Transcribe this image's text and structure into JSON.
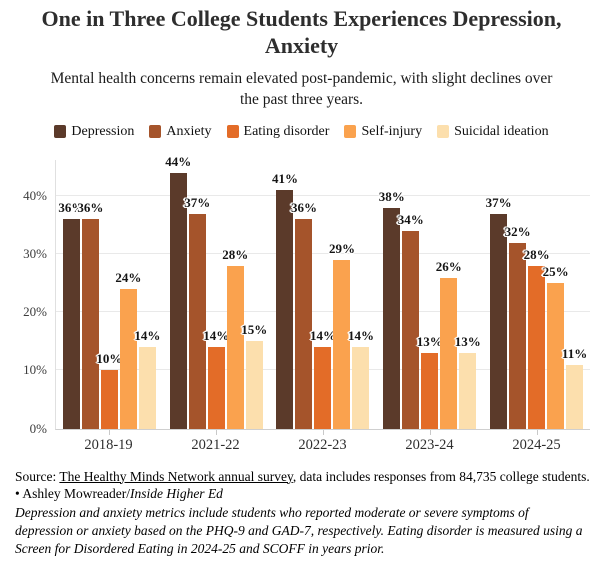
{
  "header": {
    "title": "One in Three College Students Experiences Depression, Anxiety",
    "subtitle": "Mental health concerns remain elevated post-pandemic, with slight declines over the past three years."
  },
  "chart_data": {
    "type": "bar",
    "categories": [
      "2018-19",
      "2021-22",
      "2022-23",
      "2023-24",
      "2024-25"
    ],
    "series": [
      {
        "name": "Depression",
        "color": "#5b3a2a",
        "values": [
          36,
          44,
          41,
          38,
          37
        ]
      },
      {
        "name": "Anxiety",
        "color": "#a5542b",
        "values": [
          36,
          37,
          36,
          34,
          32
        ]
      },
      {
        "name": "Eating disorder",
        "color": "#e36c28",
        "values": [
          10,
          14,
          14,
          13,
          28
        ]
      },
      {
        "name": "Self-injury",
        "color": "#faa24e",
        "values": [
          24,
          28,
          29,
          26,
          25
        ]
      },
      {
        "name": "Suicidal ideation",
        "color": "#fcdfad",
        "values": [
          14,
          15,
          14,
          13,
          11
        ]
      }
    ],
    "title": "One in Three College Students Experiences Depression, Anxiety",
    "xlabel": "",
    "ylabel": "",
    "y_ticks": [
      "0%",
      "10%",
      "20%",
      "30%",
      "40%"
    ],
    "ylim": [
      0,
      46.5
    ],
    "grid": true,
    "legend_position": "top",
    "value_label_suffix": "%"
  },
  "footer": {
    "source_prefix": "Source: ",
    "source_link": "The Healthy Minds Network annual survey",
    "source_rest": ", data includes responses from 84,735 college students. • Ashley Mowreader/",
    "source_publication": "Inside Higher Ed",
    "note": "Depression and anxiety metrics include students who reported moderate or severe symptoms of depression or anxiety based on the PHQ-9 and GAD-7, respectively. Eating disorder is measured using a Screen for Disordered Eating in 2024-25 and SCOFF in years prior."
  }
}
